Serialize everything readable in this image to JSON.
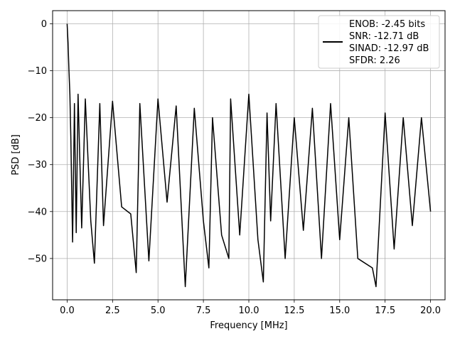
{
  "chart_data": {
    "type": "line",
    "xlabel": "Frequency [MHz]",
    "ylabel": "PSD [dB]",
    "xlim": [
      -0.8,
      20.8
    ],
    "ylim": [
      -58.8,
      2.8
    ],
    "xticks": [
      0.0,
      2.5,
      5.0,
      7.5,
      10.0,
      12.5,
      15.0,
      17.5,
      20.0
    ],
    "xtick_labels": [
      "0.0",
      "2.5",
      "5.0",
      "7.5",
      "10.0",
      "12.5",
      "15.0",
      "17.5",
      "20.0"
    ],
    "yticks": [
      0,
      -10,
      -20,
      -30,
      -40,
      -50
    ],
    "ytick_labels": [
      "0",
      "−10",
      "−20",
      "−30",
      "−40",
      "−50"
    ],
    "grid": true,
    "legend_position": "top-right",
    "legend_entries": [
      "ENOB: -2.45 bits",
      "SNR: -12.71 dB",
      "SINAD: -12.97 dB",
      "SFDR: 2.26"
    ],
    "series": [
      {
        "color": "#000000",
        "x": [
          0.0,
          0.05,
          0.1,
          0.15,
          0.2,
          0.3,
          0.4,
          0.5,
          0.6,
          0.8,
          1.0,
          1.3,
          1.5,
          1.8,
          2.0,
          2.5,
          3.0,
          3.5,
          3.8,
          4.0,
          4.5,
          5.0,
          5.5,
          6.0,
          6.5,
          7.0,
          7.5,
          7.8,
          8.0,
          8.5,
          8.9,
          9.0,
          9.5,
          10.0,
          10.5,
          10.8,
          11.0,
          11.2,
          11.5,
          12.0,
          12.5,
          13.0,
          13.5,
          14.0,
          14.5,
          15.0,
          15.5,
          16.0,
          16.8,
          17.0,
          17.5,
          18.0,
          18.5,
          19.0,
          19.5,
          20.0
        ],
        "y": [
          0,
          -4,
          -10,
          -15,
          -24,
          -46.5,
          -17,
          -44.5,
          -15,
          -43.5,
          -16,
          -42,
          -51,
          -17,
          -43,
          -16.5,
          -39,
          -40.5,
          -53,
          -17,
          -50.5,
          -16,
          -38,
          -17.5,
          -56,
          -18,
          -42,
          -52,
          -20,
          -45,
          -50,
          -16,
          -45,
          -15,
          -46,
          -55,
          -19,
          -42,
          -17,
          -50,
          -20,
          -44,
          -18,
          -50,
          -17,
          -46,
          -20,
          -50,
          -52,
          -56,
          -19,
          -48,
          -20,
          -43,
          -20,
          -40
        ]
      }
    ]
  }
}
